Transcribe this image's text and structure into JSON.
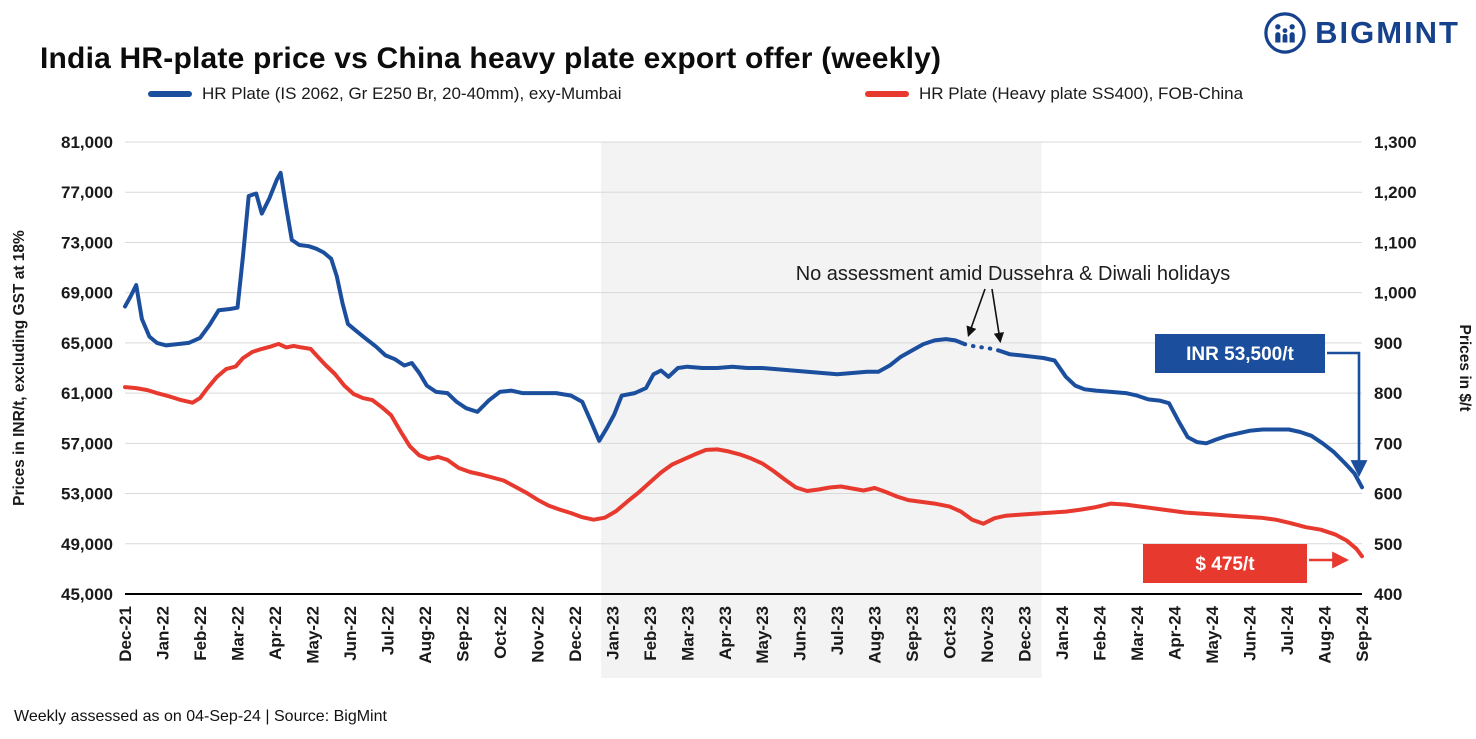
{
  "header": {
    "title": "India HR-plate price vs China heavy plate export offer (weekly)",
    "logo_text": "BIGMINT"
  },
  "legend": {
    "items": [
      {
        "label": "HR Plate (IS 2062, Gr E250 Br, 20-40mm), exy-Mumbai",
        "color": "#1b4f9e"
      },
      {
        "label": "HR Plate (Heavy plate SS400), FOB-China",
        "color": "#e8392f"
      }
    ]
  },
  "chart_data": {
    "type": "line",
    "title": "India HR-plate price vs China heavy plate export offer (weekly)",
    "x_categories": [
      "Dec-21",
      "Jan-22",
      "Feb-22",
      "Mar-22",
      "Apr-22",
      "May-22",
      "Jun-22",
      "Jul-22",
      "Aug-22",
      "Sep-22",
      "Oct-22",
      "Nov-22",
      "Dec-22",
      "Jan-23",
      "Feb-23",
      "Mar-23",
      "Apr-23",
      "May-23",
      "Jun-23",
      "Jul-23",
      "Aug-23",
      "Sep-23",
      "Oct-23",
      "Nov-23",
      "Dec-23",
      "Jan-24",
      "Feb-24",
      "Mar-24",
      "Apr-24",
      "May-24",
      "Jun-24",
      "Jul-24",
      "Aug-24",
      "Sep-24"
    ],
    "left_axis": {
      "title": "Prices in INR/t, excluding GST at 18%",
      "min": 45000,
      "max": 81000,
      "step": 4000,
      "tick_labels": [
        "45,000",
        "49,000",
        "53,000",
        "57,000",
        "61,000",
        "65,000",
        "69,000",
        "73,000",
        "77,000",
        "81,000"
      ]
    },
    "right_axis": {
      "title": "Prices in $/t",
      "min": 400,
      "max": 1300,
      "step": 100,
      "tick_labels": [
        "400",
        "500",
        "600",
        "700",
        "800",
        "900",
        "1,000",
        "1,100",
        "1,200",
        "1,300"
      ]
    },
    "grid": true,
    "highlight_band": {
      "start_category": "Jan-23",
      "end_category": "Dec-23",
      "color": "#f3f3f3"
    },
    "series": [
      {
        "name": "HR Plate (IS 2062, Gr E250 Br, 20-40mm), exy-Mumbai",
        "data_name": "india-hr-plate-line",
        "axis": "left",
        "color": "#1b4f9e",
        "no_assessment_range": [
          22.4,
          23.3
        ],
        "points": [
          [
            0,
            67900
          ],
          [
            0.15,
            68700
          ],
          [
            0.3,
            69600
          ],
          [
            0.45,
            66900
          ],
          [
            0.65,
            65500
          ],
          [
            0.85,
            65000
          ],
          [
            1.1,
            64800
          ],
          [
            1.4,
            64900
          ],
          [
            1.7,
            65000
          ],
          [
            2,
            65400
          ],
          [
            2.25,
            66400
          ],
          [
            2.5,
            67600
          ],
          [
            2.8,
            67700
          ],
          [
            3,
            67800
          ],
          [
            3.15,
            72000
          ],
          [
            3.3,
            76700
          ],
          [
            3.5,
            76900
          ],
          [
            3.65,
            75300
          ],
          [
            3.85,
            76500
          ],
          [
            4.05,
            78000
          ],
          [
            4.15,
            78550
          ],
          [
            4.3,
            75800
          ],
          [
            4.45,
            73200
          ],
          [
            4.65,
            72800
          ],
          [
            4.9,
            72700
          ],
          [
            5.1,
            72500
          ],
          [
            5.3,
            72200
          ],
          [
            5.5,
            71700
          ],
          [
            5.65,
            70300
          ],
          [
            5.8,
            68200
          ],
          [
            5.95,
            66500
          ],
          [
            6.15,
            66000
          ],
          [
            6.4,
            65400
          ],
          [
            6.7,
            64700
          ],
          [
            6.95,
            64000
          ],
          [
            7.2,
            63700
          ],
          [
            7.45,
            63200
          ],
          [
            7.65,
            63400
          ],
          [
            7.85,
            62600
          ],
          [
            8.05,
            61600
          ],
          [
            8.3,
            61100
          ],
          [
            8.6,
            61000
          ],
          [
            8.85,
            60300
          ],
          [
            9.1,
            59800
          ],
          [
            9.4,
            59500
          ],
          [
            9.7,
            60400
          ],
          [
            10,
            61100
          ],
          [
            10.3,
            61200
          ],
          [
            10.6,
            61000
          ],
          [
            11,
            61000
          ],
          [
            11.5,
            61000
          ],
          [
            11.9,
            60800
          ],
          [
            12.2,
            60300
          ],
          [
            12.45,
            58600
          ],
          [
            12.65,
            57200
          ],
          [
            12.85,
            58200
          ],
          [
            13.05,
            59300
          ],
          [
            13.25,
            60800
          ],
          [
            13.6,
            61000
          ],
          [
            13.9,
            61400
          ],
          [
            14.1,
            62500
          ],
          [
            14.3,
            62800
          ],
          [
            14.5,
            62300
          ],
          [
            14.75,
            63000
          ],
          [
            15,
            63100
          ],
          [
            15.4,
            63000
          ],
          [
            15.8,
            63000
          ],
          [
            16.2,
            63100
          ],
          [
            16.6,
            63000
          ],
          [
            17,
            63000
          ],
          [
            17.4,
            62900
          ],
          [
            17.8,
            62800
          ],
          [
            18.2,
            62700
          ],
          [
            18.6,
            62600
          ],
          [
            19,
            62500
          ],
          [
            19.4,
            62600
          ],
          [
            19.8,
            62700
          ],
          [
            20.1,
            62700
          ],
          [
            20.4,
            63200
          ],
          [
            20.7,
            63900
          ],
          [
            21,
            64400
          ],
          [
            21.3,
            64900
          ],
          [
            21.6,
            65200
          ],
          [
            21.9,
            65300
          ],
          [
            22.15,
            65200
          ],
          [
            22.4,
            64900
          ],
          [
            22.7,
            64700
          ],
          [
            23,
            64600
          ],
          [
            23.3,
            64400
          ],
          [
            23.6,
            64100
          ],
          [
            23.9,
            64000
          ],
          [
            24.2,
            63900
          ],
          [
            24.5,
            63800
          ],
          [
            24.8,
            63600
          ],
          [
            25.1,
            62300
          ],
          [
            25.35,
            61600
          ],
          [
            25.6,
            61300
          ],
          [
            25.9,
            61200
          ],
          [
            26.3,
            61100
          ],
          [
            26.7,
            61000
          ],
          [
            27,
            60800
          ],
          [
            27.3,
            60500
          ],
          [
            27.6,
            60400
          ],
          [
            27.85,
            60200
          ],
          [
            28.1,
            58800
          ],
          [
            28.35,
            57500
          ],
          [
            28.6,
            57100
          ],
          [
            28.85,
            57000
          ],
          [
            29.1,
            57300
          ],
          [
            29.4,
            57600
          ],
          [
            29.7,
            57800
          ],
          [
            30,
            58000
          ],
          [
            30.35,
            58100
          ],
          [
            30.7,
            58100
          ],
          [
            31.05,
            58100
          ],
          [
            31.35,
            57900
          ],
          [
            31.65,
            57600
          ],
          [
            31.95,
            57000
          ],
          [
            32.25,
            56300
          ],
          [
            32.55,
            55400
          ],
          [
            32.8,
            54600
          ],
          [
            33,
            53500
          ]
        ]
      },
      {
        "name": "HR Plate (Heavy plate SS400), FOB-China",
        "data_name": "china-hr-plate-line",
        "axis": "right",
        "color": "#e8392f",
        "points": [
          [
            0,
            812
          ],
          [
            0.3,
            810
          ],
          [
            0.6,
            806
          ],
          [
            0.9,
            799
          ],
          [
            1.2,
            793
          ],
          [
            1.5,
            786
          ],
          [
            1.8,
            781
          ],
          [
            2,
            790
          ],
          [
            2.2,
            810
          ],
          [
            2.45,
            832
          ],
          [
            2.7,
            848
          ],
          [
            2.95,
            853
          ],
          [
            3.15,
            870
          ],
          [
            3.4,
            882
          ],
          [
            3.65,
            888
          ],
          [
            3.9,
            893
          ],
          [
            4.1,
            898
          ],
          [
            4.3,
            891
          ],
          [
            4.5,
            894
          ],
          [
            4.7,
            891
          ],
          [
            4.95,
            888
          ],
          [
            5.15,
            872
          ],
          [
            5.35,
            856
          ],
          [
            5.6,
            838
          ],
          [
            5.85,
            815
          ],
          [
            6.1,
            798
          ],
          [
            6.35,
            790
          ],
          [
            6.6,
            786
          ],
          [
            6.85,
            772
          ],
          [
            7.1,
            756
          ],
          [
            7.35,
            724
          ],
          [
            7.6,
            694
          ],
          [
            7.85,
            676
          ],
          [
            8.1,
            669
          ],
          [
            8.35,
            673
          ],
          [
            8.6,
            667
          ],
          [
            8.9,
            651
          ],
          [
            9.2,
            643
          ],
          [
            9.5,
            638
          ],
          [
            9.8,
            632
          ],
          [
            10.1,
            626
          ],
          [
            10.4,
            614
          ],
          [
            10.7,
            602
          ],
          [
            11,
            588
          ],
          [
            11.3,
            576
          ],
          [
            11.6,
            568
          ],
          [
            11.9,
            561
          ],
          [
            12.2,
            553
          ],
          [
            12.5,
            548
          ],
          [
            12.8,
            552
          ],
          [
            13.1,
            565
          ],
          [
            13.4,
            584
          ],
          [
            13.7,
            602
          ],
          [
            14,
            622
          ],
          [
            14.3,
            642
          ],
          [
            14.6,
            658
          ],
          [
            14.9,
            668
          ],
          [
            15.2,
            678
          ],
          [
            15.5,
            687
          ],
          [
            15.8,
            688
          ],
          [
            16.1,
            684
          ],
          [
            16.4,
            678
          ],
          [
            16.7,
            670
          ],
          [
            17,
            660
          ],
          [
            17.3,
            645
          ],
          [
            17.6,
            628
          ],
          [
            17.9,
            612
          ],
          [
            18.2,
            605
          ],
          [
            18.5,
            608
          ],
          [
            18.8,
            612
          ],
          [
            19.1,
            614
          ],
          [
            19.4,
            610
          ],
          [
            19.7,
            606
          ],
          [
            20,
            611
          ],
          [
            20.3,
            603
          ],
          [
            20.6,
            594
          ],
          [
            20.9,
            587
          ],
          [
            21.2,
            584
          ],
          [
            21.6,
            580
          ],
          [
            22,
            574
          ],
          [
            22.3,
            564
          ],
          [
            22.6,
            548
          ],
          [
            22.9,
            540
          ],
          [
            23.2,
            551
          ],
          [
            23.5,
            556
          ],
          [
            23.9,
            558
          ],
          [
            24.3,
            560
          ],
          [
            24.7,
            562
          ],
          [
            25.1,
            564
          ],
          [
            25.5,
            568
          ],
          [
            25.9,
            573
          ],
          [
            26.3,
            580
          ],
          [
            26.7,
            578
          ],
          [
            27.1,
            574
          ],
          [
            27.5,
            570
          ],
          [
            27.9,
            566
          ],
          [
            28.3,
            562
          ],
          [
            28.7,
            560
          ],
          [
            29.1,
            558
          ],
          [
            29.5,
            556
          ],
          [
            29.9,
            554
          ],
          [
            30.3,
            552
          ],
          [
            30.7,
            548
          ],
          [
            31.1,
            541
          ],
          [
            31.5,
            533
          ],
          [
            31.9,
            528
          ],
          [
            32.3,
            518
          ],
          [
            32.6,
            506
          ],
          [
            32.85,
            490
          ],
          [
            33,
            475
          ]
        ]
      }
    ],
    "annotation": {
      "text": "No assessment amid Dussehra & Diwali holidays"
    },
    "callouts": [
      {
        "text": "INR 53,500/t",
        "value": 53500,
        "color": "#1b4f9e"
      },
      {
        "text": "$ 475/t",
        "value": 475,
        "color": "#e8392f"
      }
    ]
  },
  "footer": {
    "text": "Weekly assessed as on 04-Sep-24 | Source: BigMint"
  }
}
